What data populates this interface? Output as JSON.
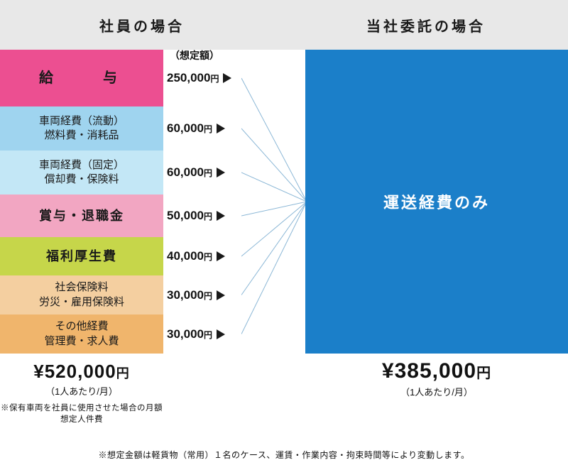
{
  "header": {
    "left": "社員の場合",
    "right": "当社委託の場合"
  },
  "left_segments": [
    {
      "label1": "給　　与",
      "label2": "",
      "height": 80,
      "bg": "#ec4f91",
      "style": "big",
      "amount": "250,000"
    },
    {
      "label1": "車両経費（流動）",
      "label2": "燃料費・消耗品",
      "height": 62,
      "bg": "#9fd4ef",
      "style": "",
      "amount": "60,000"
    },
    {
      "label1": "車両経費（固定）",
      "label2": "償却費・保険料",
      "height": 62,
      "bg": "#c3e7f6",
      "style": "",
      "amount": "60,000"
    },
    {
      "label1": "賞与・退職金",
      "label2": "",
      "height": 60,
      "bg": "#f2a6c2",
      "style": "mid",
      "amount": "50,000"
    },
    {
      "label1": "福利厚生費",
      "label2": "",
      "height": 54,
      "bg": "#c6d64a",
      "style": "mid",
      "amount": "40,000"
    },
    {
      "label1": "社会保険料",
      "label2": "労災・雇用保険料",
      "height": 55,
      "bg": "#f4cfa0",
      "style": "",
      "amount": "30,000"
    },
    {
      "label1": "その他経費",
      "label2": "管理費・求人費",
      "height": 55,
      "bg": "#f0b56c",
      "style": "",
      "amount": "30,000"
    }
  ],
  "mid_top_label": "（想定額）",
  "left_total": {
    "value": "¥520,000",
    "yen_suffix": "円",
    "note1": "（1人あたり/月）",
    "note2": "※保有車両を社員に使用させた場合の月額想定人件費"
  },
  "right": {
    "label": "運送経費のみ",
    "bg": "#1b7fc9",
    "value": "¥385,000",
    "yen_suffix": "円",
    "note": "（1人あたり/月）"
  },
  "bottom_note": "※想定金額は軽貨物（常用）１名のケース、運賃・作業内容・拘束時間等により変動します。",
  "fan_color": "#8bb7d6"
}
